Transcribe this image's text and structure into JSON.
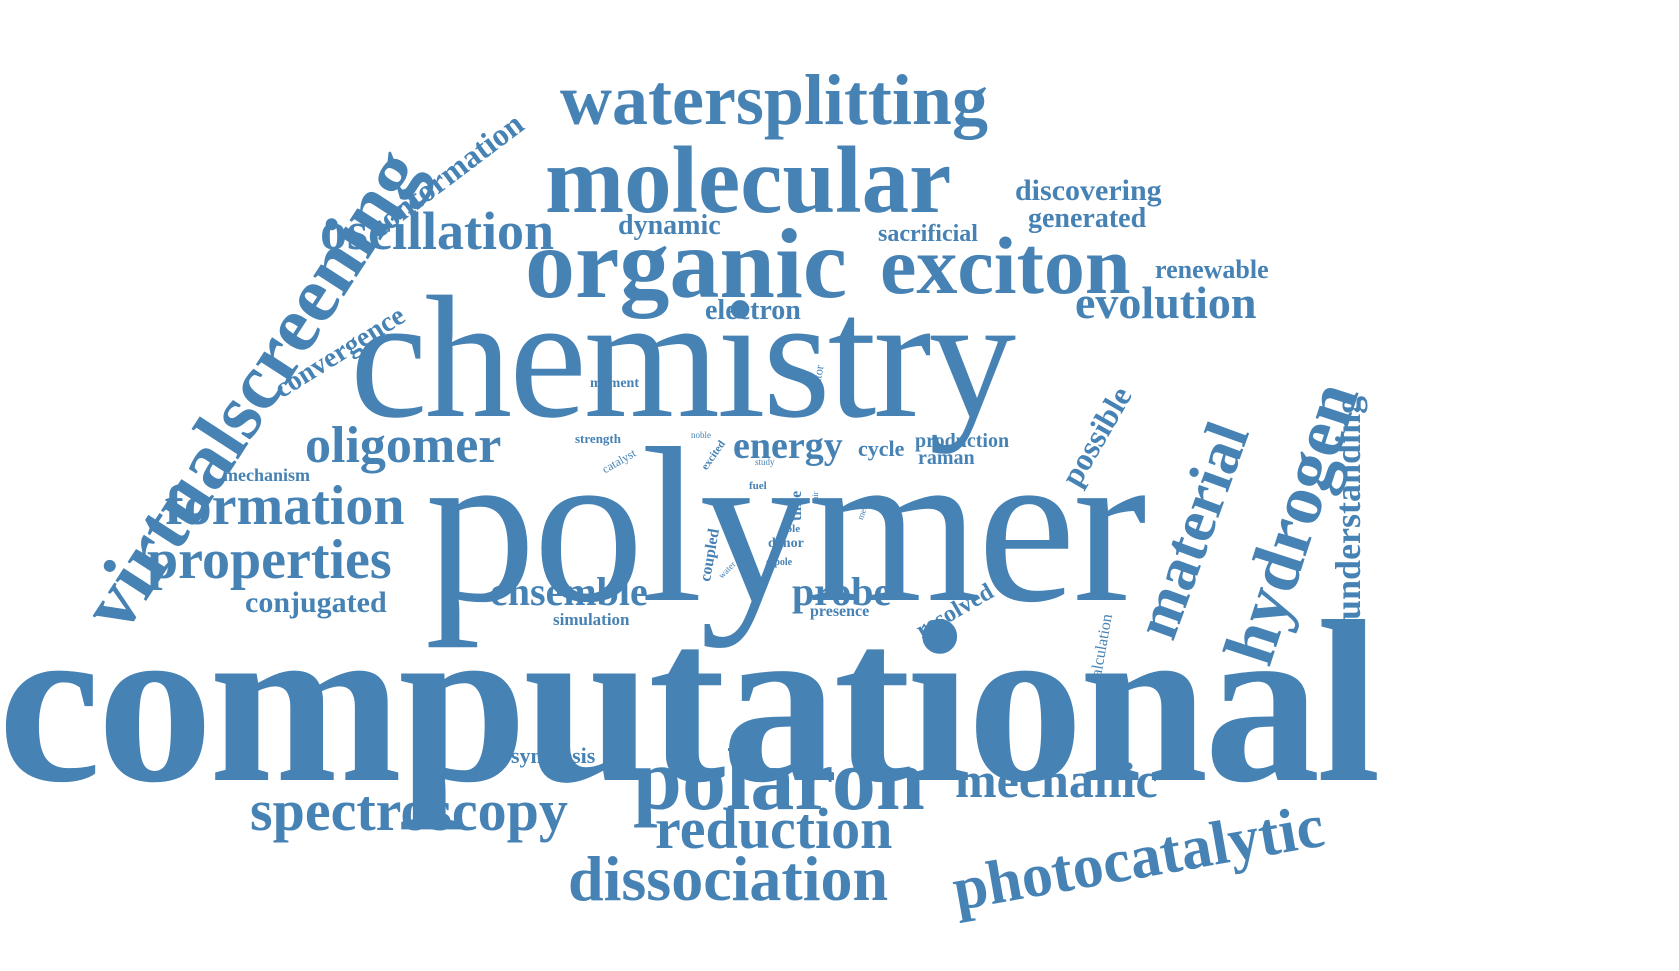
{
  "colors": {
    "word": "#4682b4",
    "background": "#ffffff"
  },
  "words": {
    "computational": "computational",
    "polymer": "polymer",
    "chemistry": "chemistry",
    "organic": "organic",
    "molecular": "molecular",
    "watersplitting": "watersplitting",
    "exciton": "exciton",
    "virtualscreening": "virtualscreening",
    "polaron": "polaron",
    "photocatalytic": "photocatalytic",
    "dissociation": "dissociation",
    "spectroscopy": "spectroscopy",
    "reduction": "reduction",
    "mechanic": "mechanic",
    "hydrogen": "hydrogen",
    "material": "material",
    "oligomer": "oligomer",
    "formation": "formation",
    "properties": "properties",
    "oscillation": "oscillation",
    "evolution": "evolution",
    "understanding": "understanding",
    "conformation": "conformation",
    "convergence": "convergence",
    "ensemble": "ensemble",
    "probe": "probe",
    "energy": "energy",
    "conjugated": "conjugated",
    "discovering": "discovering",
    "generated": "generated",
    "dynamic": "dynamic",
    "sacrificial": "sacrificial",
    "renewable": "renewable",
    "electron": "electron",
    "possible": "possible",
    "resolved": "resolved",
    "production": "production",
    "raman": "raman",
    "cycle": "cycle",
    "mechanism": "mechanism",
    "synthesis": "synthesis",
    "simulation": "simulation",
    "presence": "presence",
    "calculation": "calculation",
    "moment": "moment",
    "strength": "strength",
    "catalyst": "catalyst",
    "oscillator": "oscillator",
    "noble": "noble",
    "excited": "excited",
    "study": "study",
    "fuel": "fuel",
    "time": "time",
    "pair": "pair",
    "metal": "metal",
    "coupled": "coupled",
    "role": "role",
    "donor": "donor",
    "water": "water",
    "dipole": "dipole"
  }
}
